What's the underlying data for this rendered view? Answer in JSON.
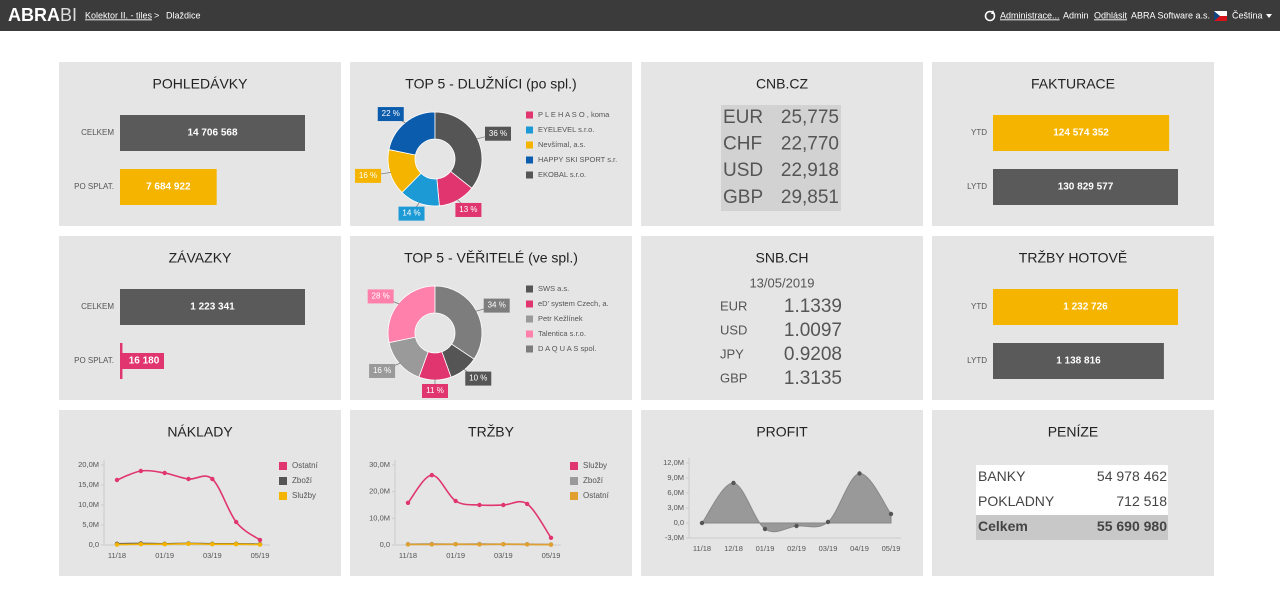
{
  "header": {
    "logo": "ABRA",
    "logo_suffix": "BI",
    "breadcrumb": "Kolektor II. - tiles",
    "separator": ">",
    "current": "Dlaždice",
    "links": [
      "Administrace...",
      "Admin",
      "Odhlásit",
      "ABRA Software a.s.",
      "Čeština"
    ]
  },
  "tiles": [
    {
      "type": "hbar",
      "title": "POHLEDÁVKY",
      "categories": [
        "CELKEM",
        "PO SPLAT."
      ],
      "values": [
        14706568,
        7684922
      ],
      "value_labels": [
        "14 706 568",
        "7 684 922"
      ],
      "colors": [
        "#5a5a5a",
        "#f5b400"
      ]
    },
    {
      "type": "donut",
      "title": "TOP 5 - DLUŽNÍCI (po spl.)",
      "categories": [
        "P L E H A S O , koma",
        "EYELEVEL s.r.o.",
        "Nevšímal, a.s.",
        "HAPPY SKI SPORT s.r.",
        "EKOBAL s.r.o."
      ],
      "values": [
        13,
        14,
        16,
        22,
        36
      ],
      "value_labels": [
        "13 %",
        "14 %",
        "16 %",
        "22 %",
        "36 %"
      ],
      "colors": [
        "#e0356f",
        "#1c9ad6",
        "#f5b400",
        "#0b5cad",
        "#555555"
      ]
    },
    {
      "type": "rates",
      "title": "CNB.CZ",
      "rows": [
        [
          "EUR",
          "25,775"
        ],
        [
          "CHF",
          "22,770"
        ],
        [
          "USD",
          "22,918"
        ],
        [
          "GBP",
          "29,851"
        ]
      ]
    },
    {
      "type": "hbar",
      "title": "FAKTURACE",
      "categories": [
        "YTD",
        "LYTD"
      ],
      "values": [
        124574352,
        130829577
      ],
      "value_labels": [
        "124 574 352",
        "130 829 577"
      ],
      "colors": [
        "#f5b400",
        "#5a5a5a"
      ]
    },
    {
      "type": "hbar",
      "title": "ZÁVAZKY",
      "categories": [
        "CELKEM",
        "PO SPLAT."
      ],
      "values": [
        1223341,
        16180
      ],
      "value_labels": [
        "1 223 341",
        "16 180"
      ],
      "colors": [
        "#5a5a5a",
        "#e0356f"
      ]
    },
    {
      "type": "donut",
      "title": "TOP 5 - VĚŘITELÉ (ve spl.)",
      "categories": [
        "SWS a.s.",
        "eD' system Czech, a.",
        "Petr Kežlínek",
        "Talentica s.r.o.",
        "D A Q U A S spol."
      ],
      "values": [
        10,
        11,
        16,
        28,
        34
      ],
      "value_labels": [
        "10 %",
        "11 %",
        "16 %",
        "28 %",
        "34 %"
      ],
      "colors": [
        "#555555",
        "#e0356f",
        "#9a9a9a",
        "#ff80aa",
        "#7d7d7d"
      ]
    },
    {
      "type": "rates",
      "title": "SNB.CH",
      "date": "13/05/2019",
      "rows": [
        [
          "EUR",
          "1.1339"
        ],
        [
          "USD",
          "1.0097"
        ],
        [
          "JPY",
          "0.9208"
        ],
        [
          "GBP",
          "1.3135"
        ]
      ]
    },
    {
      "type": "hbar",
      "title": "TRŽBY HOTOVĚ",
      "categories": [
        "YTD",
        "LYTD"
      ],
      "values": [
        1232726,
        1138816
      ],
      "value_labels": [
        "1 232 726",
        "1 138 816"
      ],
      "colors": [
        "#f5b400",
        "#5a5a5a"
      ]
    },
    {
      "type": "line",
      "title": "NÁKLADY",
      "categories": [
        "11/18",
        null,
        "01/19",
        null,
        "03/19",
        null,
        "05/19"
      ],
      "ylim": [
        0,
        20
      ],
      "yticks": [
        {
          "value": 0,
          "label": "0,0"
        },
        {
          "value": 5,
          "label": "5,0M"
        },
        {
          "value": 10,
          "label": "10,0M"
        },
        {
          "value": 15,
          "label": "15,0M"
        },
        {
          "value": 20,
          "label": "20,0M"
        }
      ],
      "series": [
        {
          "name": "Ostatní",
          "color": "#e0356f",
          "values": [
            16.25,
            18.5,
            18,
            16.5,
            16.5,
            5.75,
            1.25
          ]
        },
        {
          "name": "Zboží",
          "color": "#555555",
          "values": [
            0.3,
            0.4,
            0.3,
            0.4,
            0.3,
            0.3,
            0.2
          ]
        },
        {
          "name": "Služby",
          "color": "#f5b400",
          "values": [
            0.1,
            0.2,
            0.2,
            0.3,
            0.2,
            0.2,
            0.1
          ]
        }
      ]
    },
    {
      "type": "line",
      "title": "TRŽBY",
      "categories": [
        "11/18",
        null,
        "01/19",
        null,
        "03/19",
        null,
        "05/19"
      ],
      "ylim": [
        0,
        30
      ],
      "yticks": [
        {
          "value": 0,
          "label": "0,0"
        },
        {
          "value": 10,
          "label": "10,0M"
        },
        {
          "value": 20,
          "label": "20,0M"
        },
        {
          "value": 30,
          "label": "30,0M"
        }
      ],
      "series": [
        {
          "name": "Služby",
          "color": "#e0356f",
          "values": [
            15.8,
            26.2,
            16.5,
            15,
            15,
            15.4,
            2.7
          ]
        },
        {
          "name": "Zboží",
          "color": "#9a9a9a",
          "values": [
            0.3,
            0.4,
            0.3,
            0.4,
            0.3,
            0.3,
            0.2
          ]
        },
        {
          "name": "Ostatní",
          "color": "#e0a030",
          "values": [
            0.2,
            0.2,
            0.3,
            0.2,
            0.3,
            0.2,
            0.1
          ]
        }
      ]
    },
    {
      "type": "area",
      "title": "PROFIT",
      "categories": [
        "11/18",
        "12/18",
        "01/19",
        "02/19",
        "03/19",
        "04/19",
        "05/19"
      ],
      "ylim": [
        -3,
        12
      ],
      "yticks": [
        {
          "value": -3,
          "label": "-3,0M"
        },
        {
          "value": 0,
          "label": "0,0"
        },
        {
          "value": 3,
          "label": "3,0M"
        },
        {
          "value": 6,
          "label": "6,0M"
        },
        {
          "value": 9,
          "label": "9,0M"
        },
        {
          "value": 12,
          "label": "12,0M"
        }
      ],
      "series": [
        {
          "color": "#999999",
          "values": [
            0,
            8,
            -1.2,
            -0.6,
            0.2,
            9.9,
            1.8
          ]
        }
      ]
    },
    {
      "type": "table",
      "title": "PENÍZE",
      "rows": [
        [
          "BANKY",
          "54 978 462"
        ],
        [
          "POKLADNY",
          "712 518"
        ],
        [
          "Celkem",
          "55 690 980"
        ]
      ]
    }
  ]
}
